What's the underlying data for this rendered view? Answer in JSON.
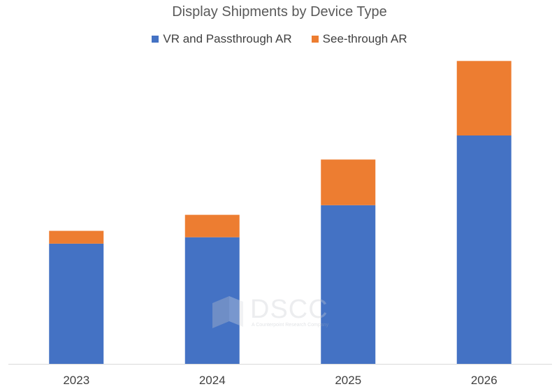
{
  "chart_data": {
    "type": "bar",
    "stacked": true,
    "title": "Display Shipments by Device Type",
    "categories": [
      "2023",
      "2024",
      "2025",
      "2026"
    ],
    "series": [
      {
        "name": "VR and Passthrough AR",
        "color": "#4472C4",
        "values": [
          150,
          158,
          198,
          285
        ]
      },
      {
        "name": "See-through AR",
        "color": "#ED7D31",
        "values": [
          16,
          28,
          57,
          93
        ]
      }
    ],
    "ylim": [
      0,
      380
    ],
    "grid": false,
    "legend_position": "top"
  },
  "watermark": {
    "brand": "DSCC",
    "tagline": "A Counterpoint Research Company"
  }
}
